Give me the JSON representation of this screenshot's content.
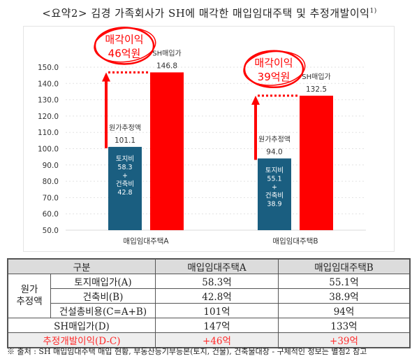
{
  "title": "<요약2> 김경 가족회사가 SH에 매각한 매입임대주택 및 추정개발이익",
  "title_sup": "1)",
  "chart_data": {
    "type": "bar",
    "categories": [
      "매입임대주택A",
      "매입임대주택B"
    ],
    "ylim": [
      50,
      150
    ],
    "yticks": [
      "50.0",
      "60.0",
      "70.0",
      "80.0",
      "90.0",
      "100.0",
      "110.0",
      "120.0",
      "130.0",
      "140.0",
      "150.0"
    ],
    "grid": true,
    "series": [
      {
        "name": "원가추정액",
        "values": [
          101.1,
          94.0
        ],
        "color": "#1a5e80",
        "value_labels": [
          "101.1",
          "94.0"
        ],
        "inner_labels": [
          [
            "토지비",
            "58.3",
            "+",
            "건축비",
            "42.8"
          ],
          [
            "토지비",
            "55.1",
            "+",
            "건축비",
            "38.9"
          ]
        ]
      },
      {
        "name": "SH매입가",
        "values": [
          146.8,
          132.5
        ],
        "color": "#ff0000",
        "value_labels": [
          "146.8",
          "132.5"
        ]
      }
    ],
    "annotations": [
      [
        "매각이익",
        "46억원"
      ],
      [
        "매각이익",
        "39억원"
      ]
    ]
  },
  "table": {
    "headers": [
      "구분",
      "매입임대주택A",
      "매입임대주택B"
    ],
    "group_label": [
      "원가",
      "추정액"
    ],
    "rows": [
      {
        "label": "토지매입가(A)",
        "a": "58.3억",
        "b": "55.1억"
      },
      {
        "label": "건축비(B)",
        "a": "42.8억",
        "b": "38.9억"
      },
      {
        "label": "건설총비용(C=A+B)",
        "a": "101억",
        "b": "94억"
      },
      {
        "label": "SH매입가(D)",
        "a": "147억",
        "b": "133억"
      },
      {
        "label": "추정개발이익(D-C)",
        "a": "+46억",
        "b": "+39억"
      }
    ]
  },
  "footnote": "※ 출처 : SH 매입임대주택 매입 현황, 부동산등기부등본(토지, 건물), 건축물대장 - 구체적인 정보는 별첨2 참고"
}
